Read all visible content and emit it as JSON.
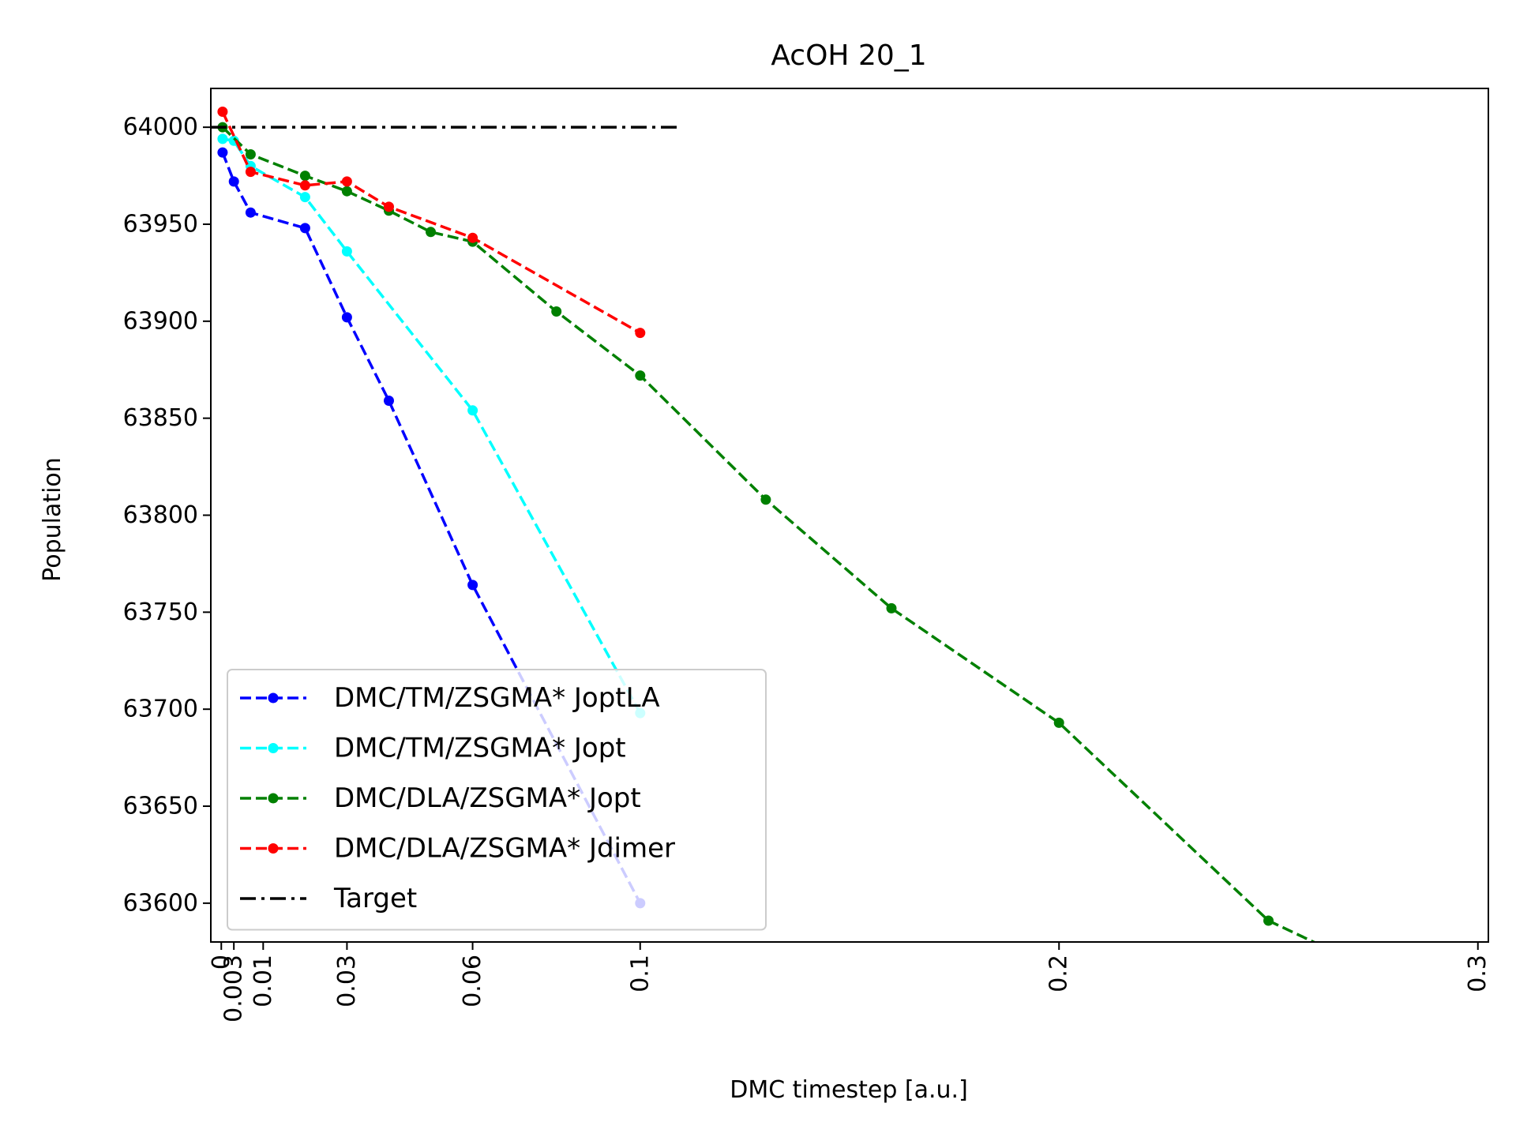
{
  "chart_data": {
    "type": "line",
    "title": "AcOH 20_1",
    "xlabel": "DMC timestep [a.u.]",
    "ylabel": "Population",
    "xlim": [
      -0.0025,
      0.3025
    ],
    "ylim": [
      63580,
      64020
    ],
    "xticks": [
      0,
      0.003,
      0.01,
      0.03,
      0.06,
      0.1,
      0.2,
      0.3
    ],
    "xtick_labels": [
      "0",
      "0.003",
      "0.01",
      "0.03",
      "0.06",
      "0.1",
      "0.2",
      "0.3"
    ],
    "yticks": [
      63600,
      63650,
      63700,
      63750,
      63800,
      63850,
      63900,
      63950,
      64000
    ],
    "ytick_labels": [
      "63600",
      "63650",
      "63700",
      "63750",
      "63800",
      "63850",
      "63900",
      "63950",
      "64000"
    ],
    "grid": false,
    "legend_position": "lower left",
    "series": [
      {
        "name": "DMC/TM/ZSGMA* JoptLA",
        "color": "#0000ff",
        "linestyle": "dashed",
        "marker": "dot",
        "x": [
          0.0003,
          0.003,
          0.007,
          0.02,
          0.03,
          0.04,
          0.06,
          0.1
        ],
        "y": [
          63987,
          63972,
          63956,
          63948,
          63902,
          63859,
          63764,
          63600
        ]
      },
      {
        "name": "DMC/TM/ZSGMA* Jopt",
        "color": "#00ffff",
        "linestyle": "dashed",
        "marker": "dot",
        "x": [
          0.0003,
          0.003,
          0.007,
          0.02,
          0.03,
          0.06,
          0.1
        ],
        "y": [
          63994,
          63993,
          63980,
          63964,
          63936,
          63854,
          63698
        ]
      },
      {
        "name": "DMC/DLA/ZSGMA* Jopt",
        "color": "#008000",
        "linestyle": "dashed",
        "marker": "dot",
        "x": [
          0.0003,
          0.007,
          0.02,
          0.03,
          0.04,
          0.05,
          0.06,
          0.08,
          0.1,
          0.13,
          0.16,
          0.2,
          0.25,
          0.3
        ],
        "y": [
          64000,
          63986,
          63975,
          63967,
          63957,
          63946,
          63941,
          63905,
          63872,
          63808,
          63752,
          63693,
          63591,
          63540
        ]
      },
      {
        "name": "DMC/DLA/ZSGMA* Jdimer",
        "color": "#ff0000",
        "linestyle": "dashed",
        "marker": "dot",
        "x": [
          0.0003,
          0.007,
          0.02,
          0.03,
          0.04,
          0.06,
          0.1
        ],
        "y": [
          64008,
          63977,
          63970,
          63972,
          63959,
          63943,
          63894
        ]
      },
      {
        "name": "Target",
        "color": "#000000",
        "linestyle": "dashdot",
        "marker": "none",
        "x": [
          -0.0025,
          0.11
        ],
        "y": [
          64000,
          64000
        ]
      }
    ]
  }
}
